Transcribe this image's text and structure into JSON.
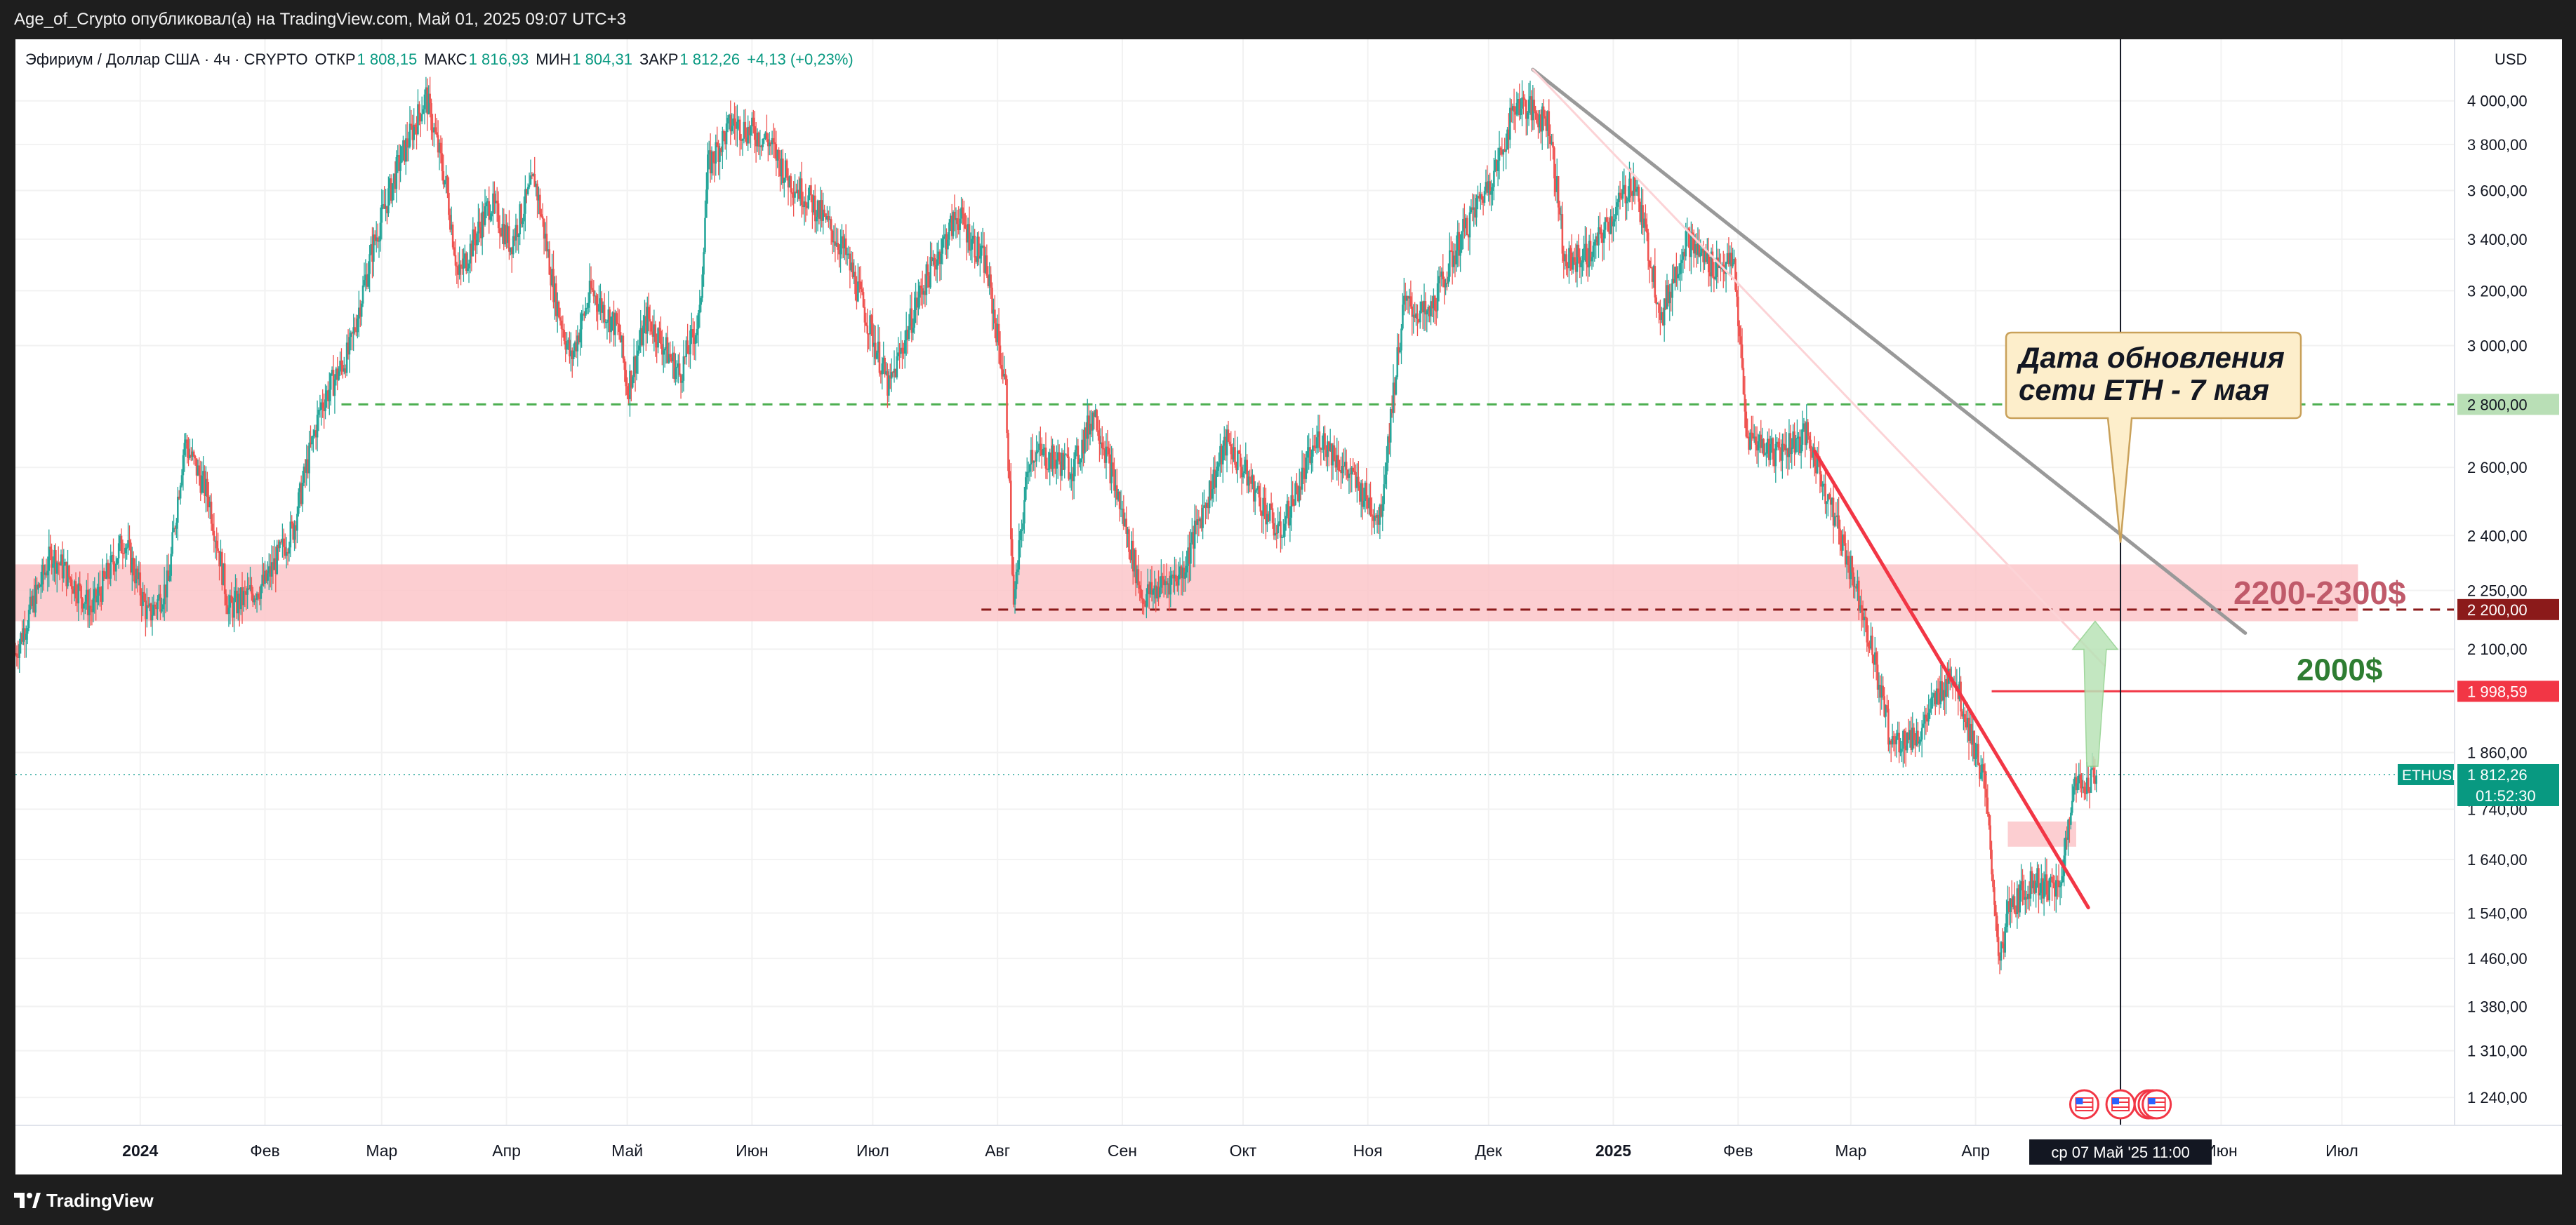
{
  "header": {
    "publication": "Age_of_Crypto опубликовал(а) на TradingView.com, Май 01, 2025 09:07 UTC+3"
  },
  "footer": {
    "brand": "TradingView"
  },
  "chart_data": {
    "type": "candlestick",
    "symbol_line": "Эфириум / Доллар США · 4ч · CRYPTO",
    "ohlc": [
      {
        "label": "ОТКР",
        "value": "1 808,15"
      },
      {
        "label": "МАКС",
        "value": "1 816,93"
      },
      {
        "label": "МИН",
        "value": "1 804,31"
      },
      {
        "label": "ЗАКР",
        "value": "1 812,26"
      }
    ],
    "change": "+4,13 (+0,23%)",
    "currency": "USD",
    "y_scale": "log",
    "ylim": [
      1200,
      4300
    ],
    "x_range": [
      "2023-12-01",
      "2025-07-29"
    ],
    "y_ticks": [
      {
        "v": 4000,
        "t": "4 000,00"
      },
      {
        "v": 3800,
        "t": "3 800,00"
      },
      {
        "v": 3600,
        "t": "3 600,00"
      },
      {
        "v": 3400,
        "t": "3 400,00"
      },
      {
        "v": 3200,
        "t": "3 200,00"
      },
      {
        "v": 3000,
        "t": "3 000,00"
      },
      {
        "v": 2600,
        "t": "2 600,00"
      },
      {
        "v": 2400,
        "t": "2 400,00"
      },
      {
        "v": 2250,
        "t": "2 250,00"
      },
      {
        "v": 2100,
        "t": "2 100,00"
      },
      {
        "v": 1860,
        "t": "1 860,00"
      },
      {
        "v": 1740,
        "t": "1 740,00"
      },
      {
        "v": 1640,
        "t": "1 640,00"
      },
      {
        "v": 1540,
        "t": "1 540,00"
      },
      {
        "v": 1460,
        "t": "1 460,00"
      },
      {
        "v": 1380,
        "t": "1 380,00"
      },
      {
        "v": 1310,
        "t": "1 310,00"
      },
      {
        "v": 1240,
        "t": "1 240,00"
      }
    ],
    "x_ticks": [
      {
        "d": "2024-01-01",
        "t": "2024",
        "bold": true
      },
      {
        "d": "2024-02-01",
        "t": "Фев"
      },
      {
        "d": "2024-03-01",
        "t": "Мар"
      },
      {
        "d": "2024-04-01",
        "t": "Апр"
      },
      {
        "d": "2024-05-01",
        "t": "Май"
      },
      {
        "d": "2024-06-01",
        "t": "Июн"
      },
      {
        "d": "2024-07-01",
        "t": "Июл"
      },
      {
        "d": "2024-08-01",
        "t": "Авг"
      },
      {
        "d": "2024-09-01",
        "t": "Сен"
      },
      {
        "d": "2024-10-01",
        "t": "Окт"
      },
      {
        "d": "2024-11-01",
        "t": "Ноя"
      },
      {
        "d": "2024-12-01",
        "t": "Дек"
      },
      {
        "d": "2025-01-01",
        "t": "2025",
        "bold": true
      },
      {
        "d": "2025-02-01",
        "t": "Фев"
      },
      {
        "d": "2025-03-01",
        "t": "Мар"
      },
      {
        "d": "2025-04-01",
        "t": "Апр"
      },
      {
        "d": "2025-06-01",
        "t": "Июн"
      },
      {
        "d": "2025-07-01",
        "t": "Июл"
      }
    ],
    "price_path": [
      [
        "2023-12-01",
        2090
      ],
      [
        "2023-12-10",
        2350
      ],
      [
        "2023-12-20",
        2200
      ],
      [
        "2023-12-28",
        2390
      ],
      [
        "2024-01-03",
        2180
      ],
      [
        "2024-01-08",
        2270
      ],
      [
        "2024-01-12",
        2680
      ],
      [
        "2024-01-18",
        2510
      ],
      [
        "2024-01-23",
        2200
      ],
      [
        "2024-02-01",
        2270
      ],
      [
        "2024-02-08",
        2420
      ],
      [
        "2024-02-15",
        2800
      ],
      [
        "2024-02-22",
        2980
      ],
      [
        "2024-02-28",
        3380
      ],
      [
        "2024-03-05",
        3700
      ],
      [
        "2024-03-12",
        4020
      ],
      [
        "2024-03-17",
        3620
      ],
      [
        "2024-03-20",
        3250
      ],
      [
        "2024-03-28",
        3550
      ],
      [
        "2024-04-02",
        3380
      ],
      [
        "2024-04-08",
        3650
      ],
      [
        "2024-04-13",
        3180
      ],
      [
        "2024-04-17",
        2950
      ],
      [
        "2024-04-22",
        3200
      ],
      [
        "2024-04-29",
        3050
      ],
      [
        "2024-05-01",
        2850
      ],
      [
        "2024-05-06",
        3100
      ],
      [
        "2024-05-14",
        2900
      ],
      [
        "2024-05-19",
        3100
      ],
      [
        "2024-05-21",
        3700
      ],
      [
        "2024-05-27",
        3900
      ],
      [
        "2024-06-05",
        3820
      ],
      [
        "2024-06-10",
        3650
      ],
      [
        "2024-06-16",
        3550
      ],
      [
        "2024-06-24",
        3350
      ],
      [
        "2024-07-05",
        2850
      ],
      [
        "2024-07-13",
        3200
      ],
      [
        "2024-07-22",
        3500
      ],
      [
        "2024-07-29",
        3300
      ],
      [
        "2024-08-03",
        2850
      ],
      [
        "2024-08-05",
        2200
      ],
      [
        "2024-08-09",
        2650
      ],
      [
        "2024-08-20",
        2600
      ],
      [
        "2024-08-25",
        2780
      ],
      [
        "2024-09-06",
        2230
      ],
      [
        "2024-09-16",
        2300
      ],
      [
        "2024-09-27",
        2680
      ],
      [
        "2024-10-10",
        2400
      ],
      [
        "2024-10-20",
        2700
      ],
      [
        "2024-11-04",
        2450
      ],
      [
        "2024-11-10",
        3150
      ],
      [
        "2024-11-16",
        3100
      ],
      [
        "2024-11-24",
        3400
      ],
      [
        "2024-12-03",
        3700
      ],
      [
        "2024-12-08",
        4000
      ],
      [
        "2024-12-16",
        3900
      ],
      [
        "2024-12-20",
        3300
      ],
      [
        "2024-12-27",
        3350
      ],
      [
        "2025-01-06",
        3650
      ],
      [
        "2025-01-13",
        3100
      ],
      [
        "2025-01-19",
        3400
      ],
      [
        "2025-01-25",
        3300
      ],
      [
        "2025-01-31",
        3300
      ],
      [
        "2025-02-03",
        2700
      ],
      [
        "2025-02-10",
        2650
      ],
      [
        "2025-02-18",
        2700
      ],
      [
        "2025-02-25",
        2450
      ],
      [
        "2025-03-04",
        2200
      ],
      [
        "2025-03-11",
        1880
      ],
      [
        "2025-03-18",
        1900
      ],
      [
        "2025-03-26",
        2050
      ],
      [
        "2025-04-03",
        1800
      ],
      [
        "2025-04-07",
        1450
      ],
      [
        "2025-04-09",
        1540
      ],
      [
        "2025-04-15",
        1600
      ],
      [
        "2025-04-22",
        1580
      ],
      [
        "2025-04-25",
        1780
      ],
      [
        "2025-05-01",
        1812.26
      ]
    ],
    "last_price": {
      "value": 1812.26,
      "symbol": "ETHUSD",
      "price": "1 812,26",
      "countdown": "01:52:30"
    },
    "levels": [
      {
        "value": 2800,
        "label": "2 800,00",
        "style": "dashed",
        "color": "#4caf50"
      },
      {
        "value": 2200,
        "label": "2 200,00",
        "style": "dashed",
        "color": "#8b1a1a"
      },
      {
        "value": 1998.59,
        "label": "1 998,59",
        "style": "solid",
        "color": "#f23645"
      }
    ],
    "zones": [
      {
        "from": "2023-12-01",
        "to": "2025-07-05",
        "low": 2170,
        "high": 2320,
        "color": "#fcc6c9"
      },
      {
        "from": "2025-04-09",
        "to": "2025-04-26",
        "low": 1665,
        "high": 1715,
        "color": "#fcc6c9"
      }
    ],
    "trendlines": [
      {
        "from": [
          "2024-12-12",
          4150
        ],
        "to": [
          "2025-06-07",
          2140
        ],
        "color": "#999999"
      },
      {
        "from": [
          "2024-12-12",
          4150
        ],
        "to": [
          "2025-05-03",
          2060
        ],
        "color": "#fcd3d6"
      },
      {
        "from": [
          "2025-02-20",
          2650
        ],
        "to": [
          "2025-04-29",
          1550
        ],
        "color": "#f23645"
      }
    ],
    "annotations": [
      {
        "text": "2200-2300$",
        "color": "#c05a6a"
      },
      {
        "text": "2000$",
        "color": "#2e7d32"
      },
      {
        "lines": [
          "Дата обновления",
          "сети ETH - 7 мая"
        ],
        "date": "2025-05-07",
        "price": 2380
      }
    ],
    "forecast_arrow": {
      "from": [
        "2025-04-30",
        1830
      ],
      "to": [
        "2025-04-30",
        2170
      ],
      "color": "#b9e3b7"
    },
    "crosshair": {
      "date": "2025-05-07",
      "label": "ср 07 Май '25    11:00"
    },
    "events": [
      {
        "date": "2025-04-28"
      },
      {
        "date": "2025-05-07"
      },
      {
        "date": "2025-05-14"
      },
      {
        "date": "2025-05-15"
      },
      {
        "date": "2025-05-16"
      }
    ],
    "event_icon": "us-flag-icon"
  }
}
